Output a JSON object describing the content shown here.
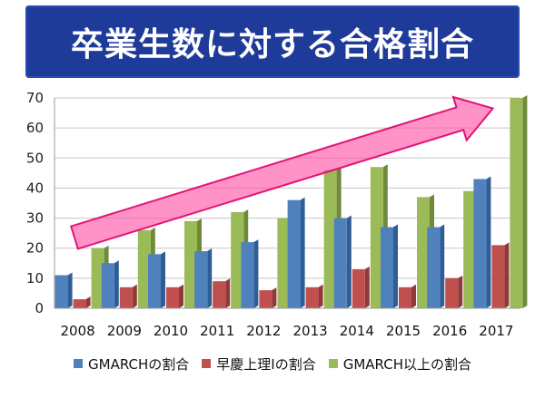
{
  "title": "卒業生数に対する合格割合",
  "colors": {
    "banner": "#1f3b99",
    "s1": "#4f81bd",
    "s2": "#c0504d",
    "s3": "#9bbb59",
    "arrow": "#ff4fa3"
  },
  "chart_data": {
    "type": "bar",
    "title": "卒業生数に対する合格割合",
    "categories": [
      "2008",
      "2009",
      "2010",
      "2011",
      "2012",
      "2013",
      "2014",
      "2015",
      "2016",
      "2017"
    ],
    "series": [
      {
        "name": "GMARCHの割合",
        "values": [
          11,
          15,
          18,
          19,
          22,
          36,
          30,
          27,
          27,
          43
        ]
      },
      {
        "name": "早慶上理Ⅰの割合",
        "values": [
          3,
          7,
          7,
          9,
          6,
          7,
          13,
          7,
          10,
          21
        ]
      },
      {
        "name": "GMARCH以上の割合",
        "values": [
          20,
          26,
          29,
          32,
          30,
          46,
          47,
          37,
          39,
          70
        ]
      }
    ],
    "ylim": [
      0,
      70
    ],
    "yticks": [
      0,
      10,
      20,
      30,
      40,
      50,
      60,
      70
    ],
    "grid": true,
    "legend": "bottom",
    "annotation": "upward trend arrow"
  }
}
